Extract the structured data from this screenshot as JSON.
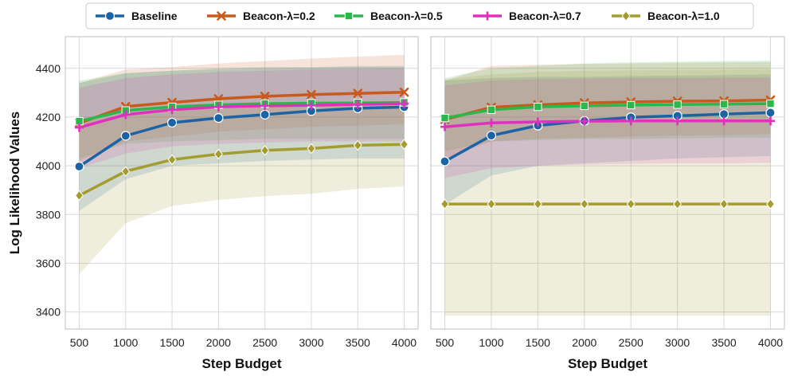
{
  "chart_data": {
    "type": "line",
    "xlabel": "Step Budget",
    "ylabel": "Log Likelihood Values",
    "x": [
      500,
      1000,
      1500,
      2000,
      2500,
      3000,
      3500,
      4000
    ],
    "x_ticks": [
      "500",
      "1000",
      "1500",
      "2000",
      "2500",
      "3000",
      "3500",
      "4000"
    ],
    "ylim": [
      3330,
      4530
    ],
    "y_ticks": [
      "3400",
      "3600",
      "3800",
      "4000",
      "4200",
      "4400"
    ],
    "grid": true,
    "legend_position": "top-center",
    "series_style": [
      {
        "name": "Baseline",
        "color": "#1b63a5",
        "marker": "circle"
      },
      {
        "name": "Beacon-λ=0.2",
        "color": "#c85a1e",
        "marker": "x"
      },
      {
        "name": "Beacon-λ=0.5",
        "color": "#2ab84a",
        "marker": "square"
      },
      {
        "name": "Beacon-λ=0.7",
        "color": "#e030c0",
        "marker": "plus"
      },
      {
        "name": "Beacon-λ=1.0",
        "color": "#a39c2e",
        "marker": "diamond"
      }
    ],
    "panels": [
      {
        "series": [
          {
            "name": "Baseline",
            "values": [
              3997,
              4123,
              4177,
              4196,
              4210,
              4225,
              4236,
              4241
            ],
            "lower": [
              3815,
              3945,
              4000,
              4010,
              4020,
              4025,
              4030,
              4030
            ],
            "upper": [
              4340,
              4380,
              4390,
              4400,
              4405,
              4405,
              4410,
              4410
            ]
          },
          {
            "name": "Beacon-λ=0.2",
            "values": [
              4175,
              4243,
              4260,
              4275,
              4285,
              4292,
              4297,
              4302
            ],
            "lower": [
              4020,
              4100,
              4120,
              4140,
              4150,
              4160,
              4165,
              4170
            ],
            "upper": [
              4340,
              4395,
              4405,
              4420,
              4430,
              4440,
              4448,
              4455
            ]
          },
          {
            "name": "Beacon-λ=0.5",
            "values": [
              4183,
              4227,
              4242,
              4250,
              4255,
              4257,
              4258,
              4260
            ],
            "lower": [
              4030,
              4090,
              4100,
              4105,
              4110,
              4110,
              4110,
              4110
            ],
            "upper": [
              4350,
              4380,
              4390,
              4395,
              4400,
              4402,
              4405,
              4405
            ]
          },
          {
            "name": "Beacon-λ=0.7",
            "values": [
              4157,
              4210,
              4230,
              4242,
              4246,
              4248,
              4252,
              4255
            ],
            "lower": [
              3990,
              4050,
              4080,
              4090,
              4095,
              4100,
              4100,
              4100
            ],
            "upper": [
              4320,
              4360,
              4375,
              4385,
              4390,
              4395,
              4398,
              4400
            ]
          },
          {
            "name": "Beacon-λ=1.0",
            "values": [
              3878,
              3977,
              4025,
              4048,
              4063,
              4071,
              4084,
              4088
            ],
            "lower": [
              3555,
              3765,
              3835,
              3860,
              3875,
              3885,
              3905,
              3915
            ],
            "upper": [
              4180,
              4210,
              4230,
              4240,
              4250,
              4255,
              4262,
              4265
            ]
          }
        ]
      },
      {
        "series": [
          {
            "name": "Baseline",
            "values": [
              4018,
              4124,
              4165,
              4184,
              4199,
              4205,
              4212,
              4218
            ],
            "lower": [
              3840,
              3960,
              4000,
              4010,
              4020,
              4030,
              4035,
              4040
            ],
            "upper": [
              4350,
              4360,
              4365,
              4365,
              4368,
              4370,
              4372,
              4375
            ]
          },
          {
            "name": "Beacon-λ=0.2",
            "values": [
              4190,
              4240,
              4250,
              4258,
              4262,
              4265,
              4266,
              4270
            ],
            "lower": [
              4030,
              4100,
              4110,
              4115,
              4120,
              4125,
              4125,
              4130
            ],
            "upper": [
              4350,
              4410,
              4415,
              4418,
              4420,
              4422,
              4424,
              4425
            ]
          },
          {
            "name": "Beacon-λ=0.5",
            "values": [
              4196,
              4230,
              4242,
              4246,
              4249,
              4251,
              4253,
              4255
            ],
            "lower": [
              4060,
              4100,
              4105,
              4110,
              4110,
              4112,
              4115,
              4115
            ],
            "upper": [
              4360,
              4400,
              4410,
              4420,
              4425,
              4428,
              4430,
              4432
            ]
          },
          {
            "name": "Beacon-λ=0.7",
            "values": [
              4160,
              4176,
              4180,
              4183,
              4184,
              4184,
              4184,
              4184
            ],
            "lower": [
              3950,
              3990,
              4000,
              4005,
              4008,
              4010,
              4010,
              4012
            ],
            "upper": [
              4330,
              4350,
              4355,
              4358,
              4360,
              4360,
              4362,
              4362
            ]
          },
          {
            "name": "Beacon-λ=1.0",
            "values": [
              3843,
              3843,
              3843,
              3843,
              3843,
              3843,
              3843,
              3843
            ],
            "lower": [
              3385,
              3385,
              3385,
              3385,
              3385,
              3385,
              3385,
              3385
            ],
            "upper": [
              4355,
              4375,
              4385,
              4390,
              4392,
              4393,
              4394,
              4395
            ]
          }
        ]
      }
    ]
  }
}
